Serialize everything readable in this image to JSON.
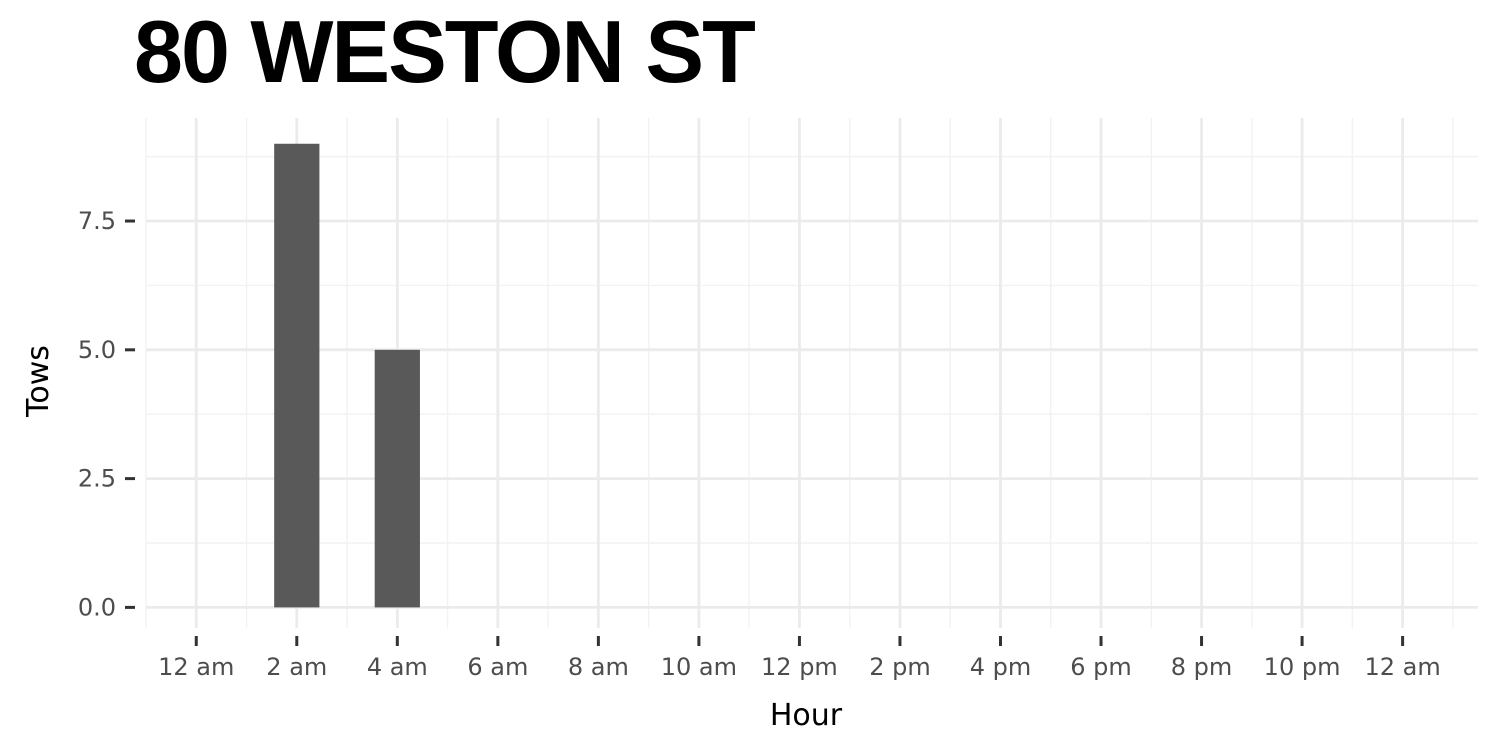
{
  "chart_data": {
    "type": "bar",
    "title": "80 WESTON ST",
    "xlabel": "Hour",
    "ylabel": "Tows",
    "x_tick_labels": [
      "12 am",
      "2 am",
      "4 am",
      "6 am",
      "8 am",
      "10 am",
      "12 pm",
      "2 pm",
      "4 pm",
      "6 pm",
      "8 pm",
      "10 pm",
      "12 am"
    ],
    "x_tick_hours": [
      0,
      2,
      4,
      6,
      8,
      10,
      12,
      14,
      16,
      18,
      20,
      22,
      24
    ],
    "y_tick_labels": [
      "0.0",
      "2.5",
      "5.0",
      "7.5"
    ],
    "y_tick_values": [
      0,
      2.5,
      5,
      7.5
    ],
    "xlim": [
      -1,
      25.5
    ],
    "ylim": [
      -0.4,
      9.5
    ],
    "grid": true,
    "bar_color": "#595959",
    "bars": [
      {
        "hour": 2,
        "value": 9
      },
      {
        "hour": 4,
        "value": 5
      }
    ]
  }
}
